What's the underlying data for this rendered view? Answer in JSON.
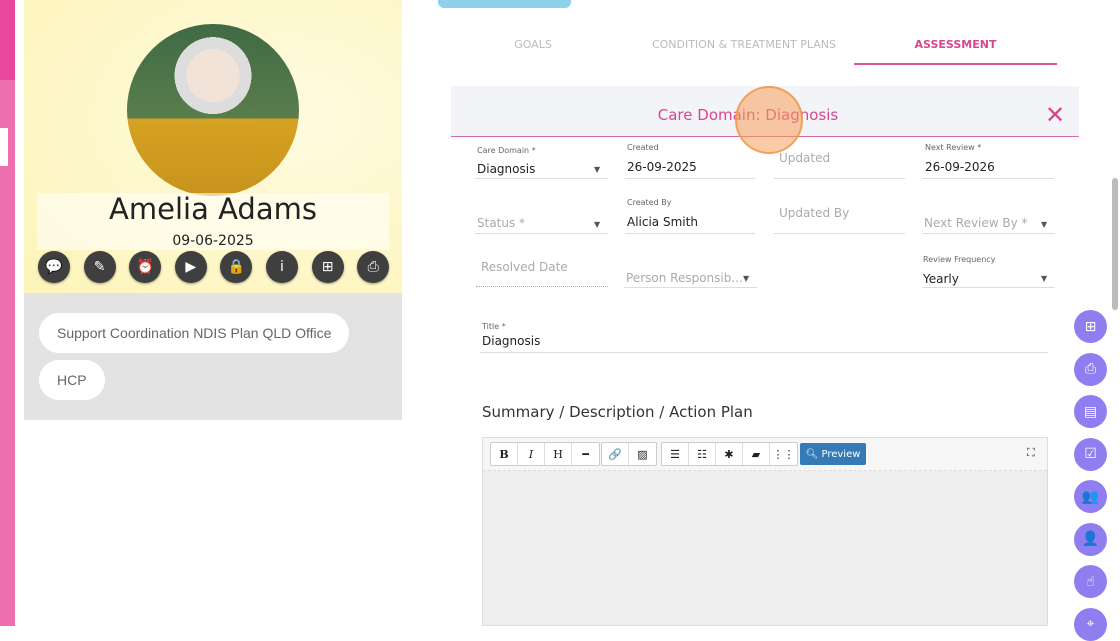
{
  "profile": {
    "name": "Amelia Adams",
    "date": "09-06-2025",
    "chips": [
      "Support Coordination NDIS Plan QLD Office",
      "HCP"
    ],
    "actions": [
      {
        "icon": "chat-icon",
        "g": "💬"
      },
      {
        "icon": "edit-icon",
        "g": "✎"
      },
      {
        "icon": "alarm-clock-icon",
        "g": "⏰"
      },
      {
        "icon": "video-icon",
        "g": "▶"
      },
      {
        "icon": "lock-refresh-icon",
        "g": "🔒"
      },
      {
        "icon": "info-icon",
        "g": "i"
      },
      {
        "icon": "add-copy-icon",
        "g": "⊞"
      },
      {
        "icon": "print-icon",
        "g": "⎙"
      }
    ]
  },
  "tabs": [
    "GOALS",
    "CONDITION & TREATMENT PLANS",
    "ASSESSMENT"
  ],
  "active_tab": "ASSESSMENT",
  "panel": {
    "title": "Care Domain: Diagnosis",
    "close": "✕"
  },
  "form": {
    "care_domain": {
      "label": "Care Domain *",
      "value": "Diagnosis"
    },
    "created": {
      "label": "Created",
      "value": "26-09-2025"
    },
    "updated": {
      "placeholder": "Updated"
    },
    "next_review": {
      "label": "Next Review *",
      "value": "26-09-2026"
    },
    "status": {
      "placeholder": "Status *"
    },
    "created_by": {
      "label": "Created By",
      "value": "Alicia Smith"
    },
    "updated_by": {
      "placeholder": "Updated By"
    },
    "next_review_by": {
      "placeholder": "Next Review By *"
    },
    "resolved_date": {
      "placeholder": "Resolved Date"
    },
    "person_responsible": {
      "placeholder": "Person Responsib..."
    },
    "review_frequency": {
      "label": "Review Frequency",
      "value": "Yearly"
    },
    "title": {
      "label": "Title *",
      "value": "Diagnosis"
    }
  },
  "summary": {
    "label": "Summary / Description / Action Plan",
    "preview": "Preview"
  },
  "fabs": [
    "add-copy-icon",
    "print-icon",
    "report-icon",
    "checklist-icon",
    "group-icon",
    "add-user-icon",
    "clipboard-hand-icon",
    "location-icon"
  ],
  "colors": {
    "accent": "#d8468f",
    "fab": "#8f7ef0",
    "preview": "#337ab7"
  }
}
